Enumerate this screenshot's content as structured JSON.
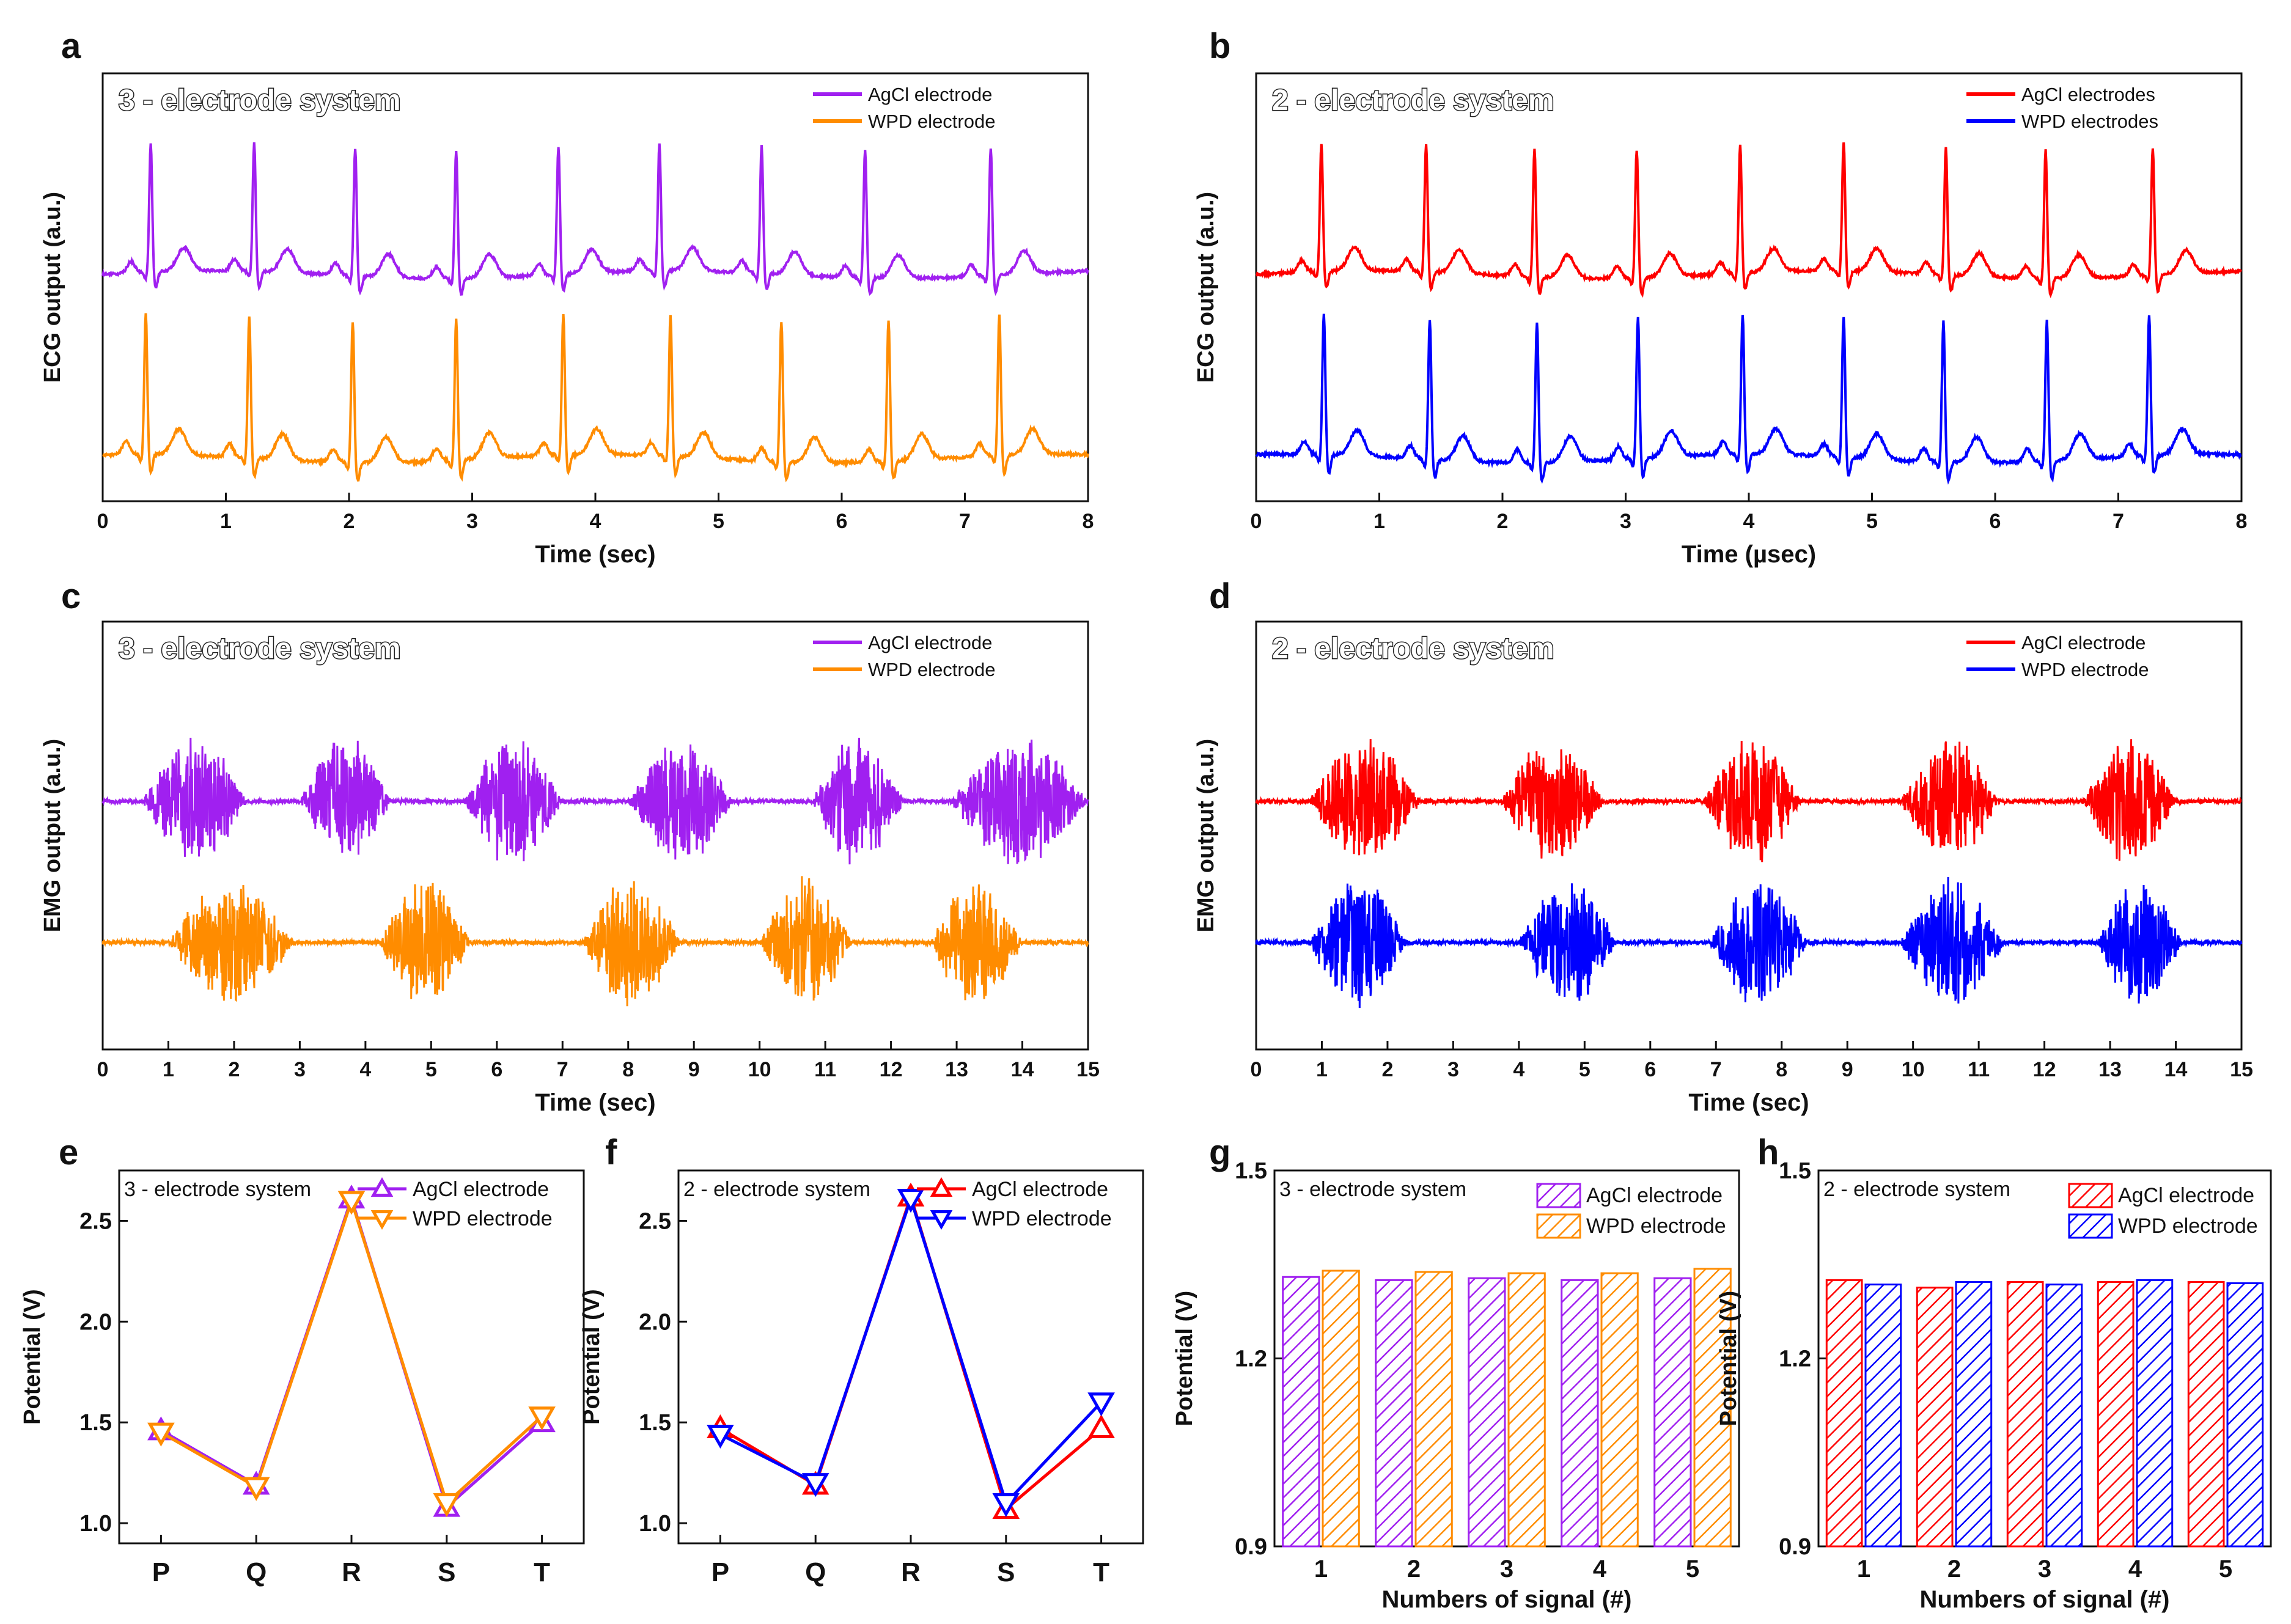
{
  "colors": {
    "agcl_3e": "#a020f0",
    "wpd_3e": "#ff8c00",
    "agcl_2e": "#ff0000",
    "wpd_2e": "#0000ff",
    "axis": "#111111"
  },
  "chart_data": [
    {
      "id": "a",
      "type": "line",
      "panel_label": "a",
      "title": "3 - electrode system",
      "xlabel": "Time (sec)",
      "ylabel": "ECG output (a.u.)",
      "xlim": [
        0,
        8
      ],
      "xticks": [
        "0",
        "1",
        "2",
        "3",
        "4",
        "5",
        "6",
        "7",
        "8"
      ],
      "legend": [
        "AgCl electrode",
        "WPD electrode"
      ],
      "legend_position": "top-right",
      "series": [
        {
          "name": "AgCl electrode",
          "color": "#a020f0",
          "r_peaks_sec": [
            0.39,
            1.23,
            2.05,
            2.87,
            3.7,
            4.52,
            5.35,
            6.19,
            7.21
          ],
          "baseline": 0.62,
          "peak": 1.0
        },
        {
          "name": "WPD electrode",
          "color": "#ff8c00",
          "r_peaks_sec": [
            0.35,
            1.19,
            2.03,
            2.87,
            3.74,
            4.61,
            5.51,
            6.38,
            7.28
          ],
          "baseline": 0.0,
          "peak": 0.38
        }
      ]
    },
    {
      "id": "b",
      "type": "line",
      "panel_label": "b",
      "title": "2 - electrode system",
      "xlabel": "Time (µsec)",
      "ylabel": "ECG output (a.u.)",
      "xlim": [
        0,
        8
      ],
      "xticks": [
        "0",
        "1",
        "2",
        "3",
        "4",
        "5",
        "6",
        "7",
        "8"
      ],
      "legend": [
        "AgCl electrodes",
        "WPD electrodes"
      ],
      "legend_position": "top-right",
      "series": [
        {
          "name": "AgCl electrodes",
          "color": "#ff0000",
          "r_peaks_sec": [
            0.53,
            1.38,
            2.26,
            3.09,
            3.93,
            4.77,
            5.6,
            6.41,
            7.28
          ],
          "baseline": 0.62,
          "peak": 1.0
        },
        {
          "name": "WPD electrodes",
          "color": "#0000ff",
          "r_peaks_sec": [
            0.55,
            1.41,
            2.28,
            3.1,
            3.95,
            4.77,
            5.58,
            6.42,
            7.25
          ],
          "baseline": 0.0,
          "peak": 0.38
        }
      ]
    },
    {
      "id": "c",
      "type": "line",
      "panel_label": "c",
      "title": "3 - electrode system",
      "xlabel": "Time (sec)",
      "ylabel": "EMG output (a.u.)",
      "xlim": [
        0,
        15
      ],
      "xticks": [
        "0",
        "1",
        "2",
        "3",
        "4",
        "5",
        "6",
        "7",
        "8",
        "9",
        "10",
        "11",
        "12",
        "13",
        "14",
        "15"
      ],
      "legend": [
        "AgCl electrode",
        "WPD electrode"
      ],
      "legend_position": "top-right",
      "series": [
        {
          "name": "AgCl electrode",
          "color": "#a020f0",
          "bursts": [
            [
              0.6,
              2.2
            ],
            [
              3.0,
              4.4
            ],
            [
              5.5,
              7.0
            ],
            [
              8.0,
              9.6
            ],
            [
              10.8,
              12.2
            ],
            [
              12.9,
              15.0
            ]
          ]
        },
        {
          "name": "WPD electrode",
          "color": "#ff8c00",
          "bursts": [
            [
              1.0,
              2.9
            ],
            [
              4.2,
              5.6
            ],
            [
              7.3,
              8.8
            ],
            [
              10.0,
              11.4
            ],
            [
              12.6,
              14.0
            ]
          ]
        }
      ]
    },
    {
      "id": "d",
      "type": "line",
      "panel_label": "d",
      "title": "2 - electrode system",
      "xlabel": "Time (sec)",
      "ylabel": "EMG output (a.u.)",
      "xlim": [
        0,
        15
      ],
      "xticks": [
        "0",
        "1",
        "2",
        "3",
        "4",
        "5",
        "6",
        "7",
        "8",
        "9",
        "10",
        "11",
        "12",
        "13",
        "14",
        "15"
      ],
      "legend": [
        "AgCl electrode",
        "WPD electrode"
      ],
      "legend_position": "top-right",
      "series": [
        {
          "name": "AgCl electrode",
          "color": "#ff0000",
          "bursts": [
            [
              0.8,
              2.5
            ],
            [
              3.7,
              5.3
            ],
            [
              6.8,
              8.3
            ],
            [
              9.8,
              11.3
            ],
            [
              12.6,
              14.0
            ]
          ]
        },
        {
          "name": "WPD electrode",
          "color": "#0000ff",
          "bursts": [
            [
              0.8,
              2.3
            ],
            [
              4.0,
              5.5
            ],
            [
              6.9,
              8.4
            ],
            [
              9.8,
              11.4
            ],
            [
              12.8,
              14.1
            ]
          ]
        }
      ]
    },
    {
      "id": "e",
      "type": "line",
      "panel_label": "e",
      "title": "3 - electrode system",
      "xlabel": "",
      "ylabel": "Potential (V)",
      "categories": [
        "P",
        "Q",
        "R",
        "S",
        "T"
      ],
      "ylim": [
        0.9,
        2.75
      ],
      "yticks": [
        1.0,
        1.5,
        2.0,
        2.5
      ],
      "yticklabels": [
        "1.0",
        "1.5",
        "2.0",
        "2.5"
      ],
      "legend_position": "top-right",
      "series": [
        {
          "name": "AgCl electrode",
          "color": "#a020f0",
          "marker": "triangle-up",
          "values": [
            1.46,
            1.19,
            2.61,
            1.08,
            1.5
          ]
        },
        {
          "name": "WPD electrode",
          "color": "#ff8c00",
          "marker": "triangle-down",
          "values": [
            1.45,
            1.18,
            2.6,
            1.1,
            1.53
          ]
        }
      ]
    },
    {
      "id": "f",
      "type": "line",
      "panel_label": "f",
      "title": "2 - electrode system",
      "xlabel": "",
      "ylabel": "Potential (V)",
      "categories": [
        "P",
        "Q",
        "R",
        "S",
        "T"
      ],
      "ylim": [
        0.9,
        2.75
      ],
      "yticks": [
        1.0,
        1.5,
        2.0,
        2.5
      ],
      "yticklabels": [
        "1.0",
        "1.5",
        "2.0",
        "2.5"
      ],
      "legend_position": "top-right",
      "series": [
        {
          "name": "AgCl electrode",
          "color": "#ff0000",
          "marker": "triangle-up",
          "values": [
            1.47,
            1.19,
            2.62,
            1.07,
            1.47
          ]
        },
        {
          "name": "WPD electrode",
          "color": "#0000ff",
          "marker": "triangle-down",
          "values": [
            1.44,
            1.2,
            2.61,
            1.1,
            1.6
          ]
        }
      ]
    },
    {
      "id": "g",
      "type": "bar",
      "panel_label": "g",
      "title": "3 - electrode system",
      "xlabel": "Numbers of signal (#)",
      "ylabel": "Potential (V)",
      "categories": [
        "1",
        "2",
        "3",
        "4",
        "5"
      ],
      "ylim": [
        0.9,
        1.5
      ],
      "yticks": [
        0.9,
        1.2,
        1.5
      ],
      "yticklabels": [
        "0.9",
        "1.2",
        "1.5"
      ],
      "legend_position": "top-right",
      "series": [
        {
          "name": "AgCl electrode",
          "color": "#a020f0",
          "values": [
            1.33,
            1.325,
            1.328,
            1.325,
            1.328
          ]
        },
        {
          "name": "WPD electrode",
          "color": "#ff8c00",
          "values": [
            1.34,
            1.338,
            1.336,
            1.336,
            1.343
          ]
        }
      ]
    },
    {
      "id": "h",
      "type": "bar",
      "panel_label": "h",
      "title": "2 - electrode system",
      "xlabel": "Numbers of signal (#)",
      "ylabel": "Potential (V)",
      "categories": [
        "1",
        "2",
        "3",
        "4",
        "5"
      ],
      "ylim": [
        0.9,
        1.5
      ],
      "yticks": [
        0.9,
        1.2,
        1.5
      ],
      "yticklabels": [
        "0.9",
        "1.2",
        "1.5"
      ],
      "legend_position": "top-right",
      "series": [
        {
          "name": "AgCl electrode",
          "color": "#ff0000",
          "values": [
            1.325,
            1.313,
            1.322,
            1.322,
            1.322
          ]
        },
        {
          "name": "WPD electrode",
          "color": "#0000ff",
          "values": [
            1.318,
            1.322,
            1.318,
            1.325,
            1.32
          ]
        }
      ]
    }
  ]
}
